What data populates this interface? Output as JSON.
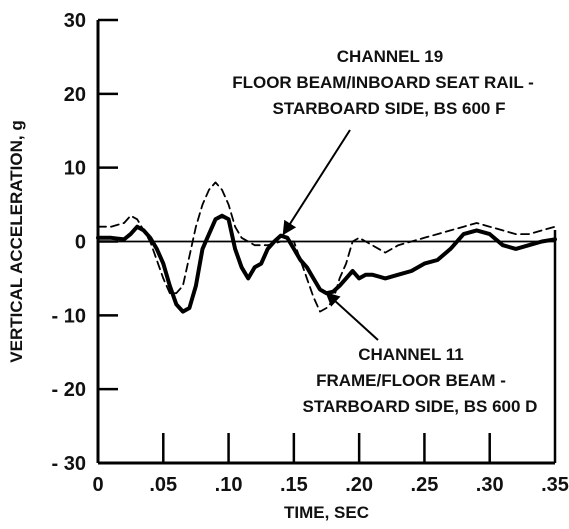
{
  "chart_data": {
    "type": "line",
    "title": "",
    "xlabel": "TIME, SEC",
    "ylabel": "VERTICAL ACCELERATION, g",
    "xlim": [
      0,
      0.35
    ],
    "ylim": [
      -30,
      30
    ],
    "x_ticks": [
      0,
      0.05,
      0.1,
      0.15,
      0.2,
      0.25,
      0.3,
      0.35
    ],
    "x_tick_labels": [
      "0",
      ".05",
      ".10",
      ".15",
      ".20",
      ".25",
      ".30",
      ".35"
    ],
    "y_ticks": [
      -30,
      -20,
      -10,
      0,
      10,
      20,
      30
    ],
    "y_tick_labels": [
      "- 30",
      "- 20",
      "- 10",
      "0",
      "10",
      "20",
      "30"
    ],
    "grid": false,
    "zero_line": true,
    "series": [
      {
        "style": "solid",
        "x": [
          0,
          0.01,
          0.02,
          0.025,
          0.03,
          0.035,
          0.04,
          0.045,
          0.05,
          0.055,
          0.06,
          0.065,
          0.07,
          0.075,
          0.08,
          0.085,
          0.09,
          0.095,
          0.1,
          0.105,
          0.11,
          0.115,
          0.12,
          0.125,
          0.13,
          0.135,
          0.14,
          0.145,
          0.15,
          0.155,
          0.16,
          0.165,
          0.17,
          0.175,
          0.18,
          0.185,
          0.19,
          0.195,
          0.2,
          0.205,
          0.21,
          0.22,
          0.23,
          0.24,
          0.25,
          0.26,
          0.27,
          0.28,
          0.29,
          0.3,
          0.31,
          0.32,
          0.33,
          0.34,
          0.35
        ],
        "y": [
          0.5,
          0.5,
          0.3,
          1.0,
          2.0,
          1.5,
          0.5,
          -1.0,
          -3.0,
          -6.0,
          -8.5,
          -9.5,
          -9.0,
          -6.0,
          -1.0,
          1.0,
          3.0,
          3.5,
          3.0,
          -1.0,
          -3.5,
          -5.0,
          -3.5,
          -3.0,
          -1.0,
          0.0,
          0.8,
          0.5,
          -1.0,
          -2.5,
          -3.5,
          -5.0,
          -6.5,
          -7.0,
          -6.8,
          -6.0,
          -5.0,
          -4.0,
          -5.0,
          -4.5,
          -4.5,
          -5.0,
          -4.5,
          -4.0,
          -3.0,
          -2.5,
          -1.0,
          1.0,
          1.5,
          1.0,
          -0.5,
          -1.0,
          -0.5,
          0.0,
          0.3
        ]
      },
      {
        "style": "dashed",
        "x": [
          0,
          0.01,
          0.02,
          0.025,
          0.03,
          0.04,
          0.05,
          0.055,
          0.06,
          0.065,
          0.07,
          0.075,
          0.08,
          0.085,
          0.09,
          0.095,
          0.1,
          0.105,
          0.11,
          0.12,
          0.13,
          0.14,
          0.15,
          0.16,
          0.165,
          0.17,
          0.175,
          0.18,
          0.185,
          0.19,
          0.195,
          0.2,
          0.205,
          0.21,
          0.22,
          0.23,
          0.24,
          0.25,
          0.26,
          0.27,
          0.28,
          0.29,
          0.3,
          0.31,
          0.32,
          0.33,
          0.34,
          0.35
        ],
        "y": [
          2.0,
          2.0,
          2.5,
          3.5,
          3.0,
          0.0,
          -5.0,
          -7.0,
          -7.0,
          -6.0,
          -2.0,
          2.0,
          5.0,
          7.0,
          8.0,
          7.0,
          5.0,
          2.0,
          0.5,
          -0.5,
          -0.5,
          0.0,
          0.0,
          -5.0,
          -7.5,
          -9.5,
          -9.0,
          -8.0,
          -5.0,
          -3.0,
          0.0,
          0.5,
          0.0,
          -0.5,
          -1.5,
          -0.5,
          0.0,
          0.5,
          1.0,
          1.5,
          2.0,
          2.5,
          2.0,
          1.5,
          1.0,
          1.0,
          1.5,
          2.0
        ]
      }
    ],
    "annotations": [
      {
        "lines": [
          "CHANNEL 19",
          "FLOOR BEAM/INBOARD SEAT RAIL -",
          "STARBOARD SIDE, BS 600 F"
        ],
        "arrow_to": [
          0.142,
          1.0
        ]
      },
      {
        "lines": [
          "CHANNEL 11",
          "FRAME/FLOOR BEAM -",
          "STARBOARD SIDE, BS 600 D"
        ],
        "arrow_to": [
          0.175,
          -7.0
        ]
      }
    ]
  }
}
